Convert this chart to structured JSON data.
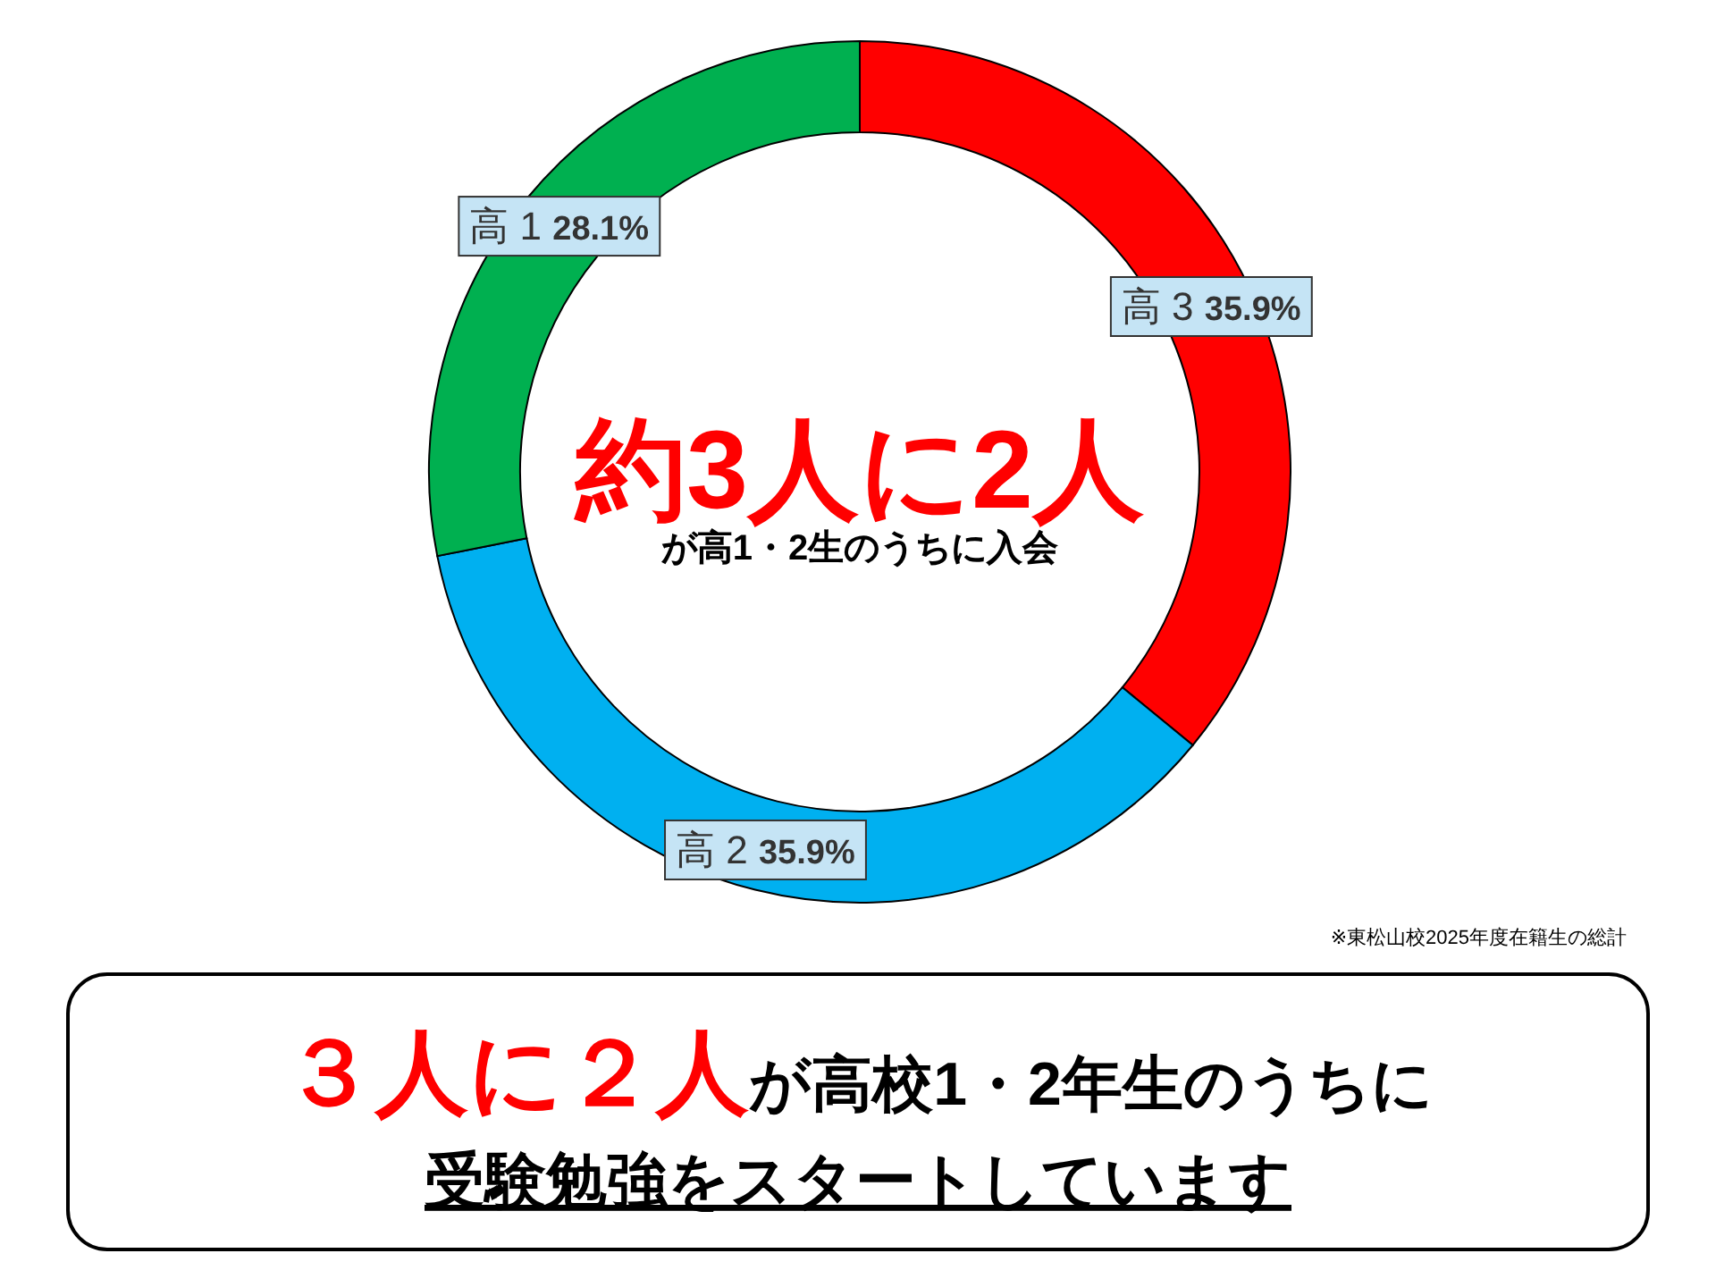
{
  "chart_data": {
    "type": "donut",
    "categories": [
      "高 3",
      "高 2",
      "高 1"
    ],
    "values": [
      35.9,
      35.9,
      28.1
    ],
    "colors": [
      "#ff0000",
      "#00b0f0",
      "#00b050"
    ],
    "value_labels": [
      "35.9%",
      "35.9%",
      "28.1%"
    ],
    "annotations": [
      "約3人に2人",
      "が高1・2生のうちに入会",
      "※東松山校2025年度在籍生の総計",
      "３人に２人",
      "が高校1・2年生のうちに",
      "受験勉強をスタートしています"
    ]
  }
}
